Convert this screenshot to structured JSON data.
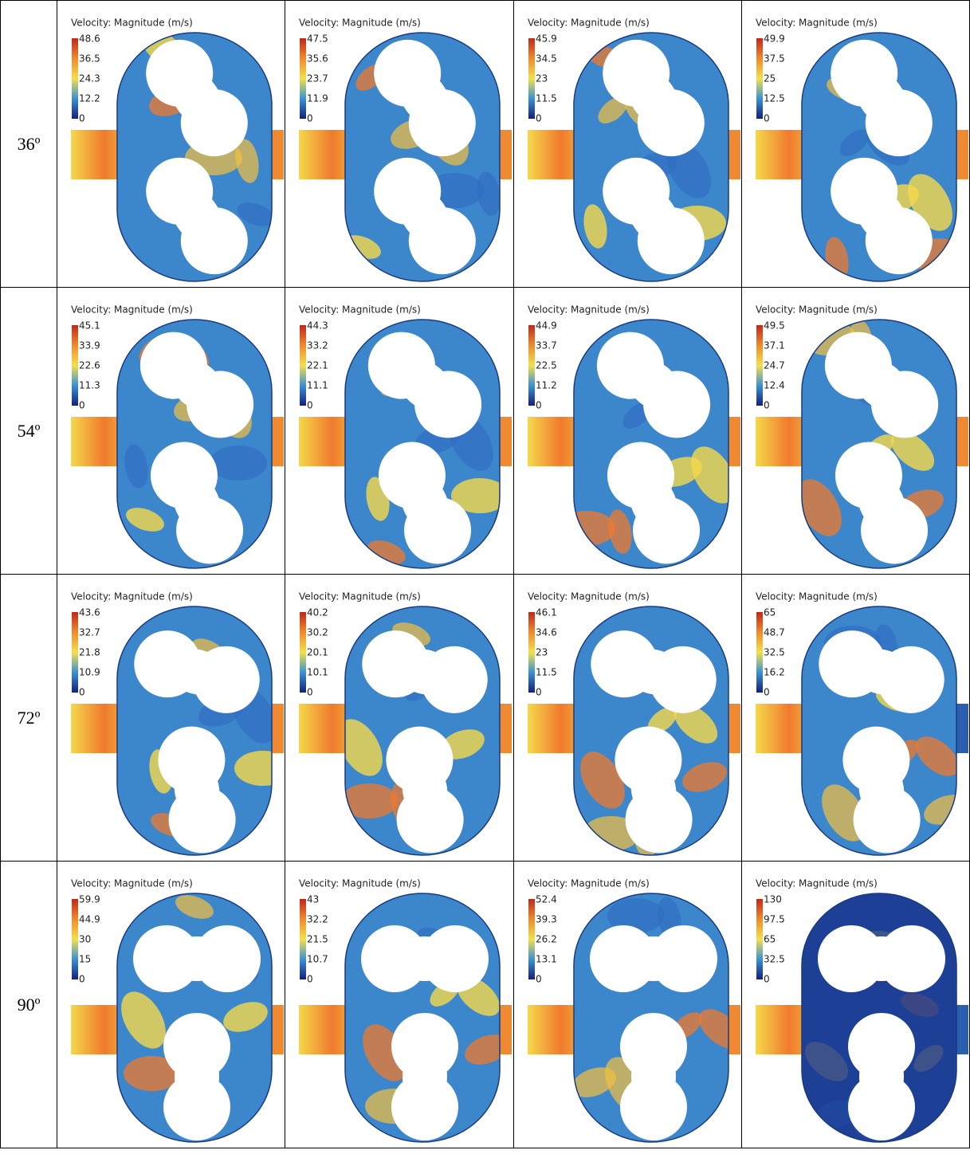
{
  "rows": [
    {
      "angle": "36º",
      "cells": [
        {
          "title": "Velocity: Magnitude (m/s)",
          "ticks": [
            48.6,
            36.5,
            24.3,
            12.2,
            0
          ]
        },
        {
          "title": "Velocity: Magnitude (m/s)",
          "ticks": [
            47.5,
            35.6,
            23.7,
            11.9,
            0
          ]
        },
        {
          "title": "Velocity: Magnitude (m/s)",
          "ticks": [
            45.9,
            34.5,
            23,
            11.5,
            0
          ]
        },
        {
          "title": "Velocity: Magnitude (m/s)",
          "ticks": [
            49.9,
            37.5,
            25,
            12.5,
            0
          ]
        }
      ]
    },
    {
      "angle": "54º",
      "cells": [
        {
          "title": "Velocity: Magnitude (m/s)",
          "ticks": [
            45.1,
            33.9,
            22.6,
            11.3,
            0
          ]
        },
        {
          "title": "Velocity: Magnitude (m/s)",
          "ticks": [
            44.3,
            33.2,
            22.1,
            11.1,
            0
          ]
        },
        {
          "title": "Velocity: Magnitude (m/s)",
          "ticks": [
            44.9,
            33.7,
            22.5,
            11.2,
            0
          ]
        },
        {
          "title": "Velocity: Magnitude (m/s)",
          "ticks": [
            49.5,
            37.1,
            24.7,
            12.4,
            0
          ]
        }
      ]
    },
    {
      "angle": "72º",
      "cells": [
        {
          "title": "Velocity: Magnitude (m/s)",
          "ticks": [
            43.6,
            32.7,
            21.8,
            10.9,
            0
          ]
        },
        {
          "title": "Velocity: Magnitude (m/s)",
          "ticks": [
            40.2,
            30.2,
            20.1,
            10.1,
            0
          ]
        },
        {
          "title": "Velocity: Magnitude (m/s)",
          "ticks": [
            46.1,
            34.6,
            23,
            11.5,
            0
          ]
        },
        {
          "title": "Velocity: Magnitude (m/s)",
          "ticks": [
            65,
            48.7,
            32.5,
            16.2,
            0
          ]
        }
      ]
    },
    {
      "angle": "90º",
      "cells": [
        {
          "title": "Velocity: Magnitude (m/s)",
          "ticks": [
            59.9,
            44.9,
            30,
            15,
            0
          ]
        },
        {
          "title": "Velocity: Magnitude (m/s)",
          "ticks": [
            43,
            32.2,
            21.5,
            10.7,
            0
          ]
        },
        {
          "title": "Velocity: Magnitude (m/s)",
          "ticks": [
            52.4,
            39.3,
            26.2,
            13.1,
            0
          ]
        },
        {
          "title": "Velocity: Magnitude (m/s)",
          "ticks": [
            130,
            97.5,
            65,
            32.5,
            0
          ]
        }
      ]
    }
  ]
}
